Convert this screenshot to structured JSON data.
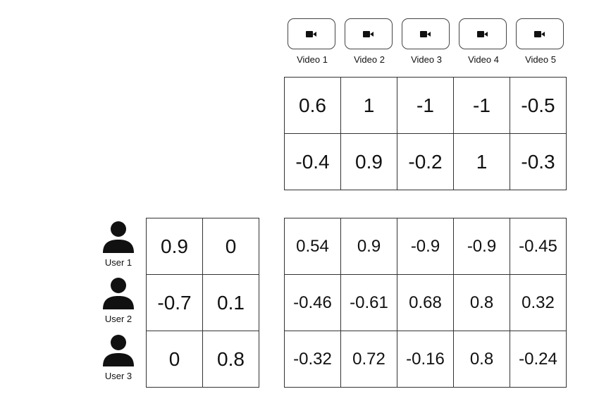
{
  "videos": [
    {
      "label": "Video 1",
      "icon": "video-camera-icon"
    },
    {
      "label": "Video 2",
      "icon": "video-camera-icon"
    },
    {
      "label": "Video 3",
      "icon": "video-camera-icon"
    },
    {
      "label": "Video 4",
      "icon": "video-camera-icon"
    },
    {
      "label": "Video 5",
      "icon": "video-camera-icon"
    }
  ],
  "users": [
    {
      "label": "User 1",
      "icon": "user-icon"
    },
    {
      "label": "User 2",
      "icon": "user-icon"
    },
    {
      "label": "User 3",
      "icon": "user-icon"
    }
  ],
  "video_matrix": [
    [
      "0.6",
      "1",
      "-1",
      "-1",
      "-0.5"
    ],
    [
      "-0.4",
      "0.9",
      "-0.2",
      "1",
      "-0.3"
    ]
  ],
  "user_matrix": [
    [
      "0.9",
      "0"
    ],
    [
      "-0.7",
      "0.1"
    ],
    [
      "0",
      "0.8"
    ]
  ],
  "product_matrix": [
    [
      "0.54",
      "0.9",
      "-0.9",
      "-0.9",
      "-0.45"
    ],
    [
      "-0.46",
      "-0.61",
      "0.68",
      "0.8",
      "0.32"
    ],
    [
      "-0.32",
      "0.72",
      "-0.16",
      "0.8",
      "-0.24"
    ]
  ]
}
